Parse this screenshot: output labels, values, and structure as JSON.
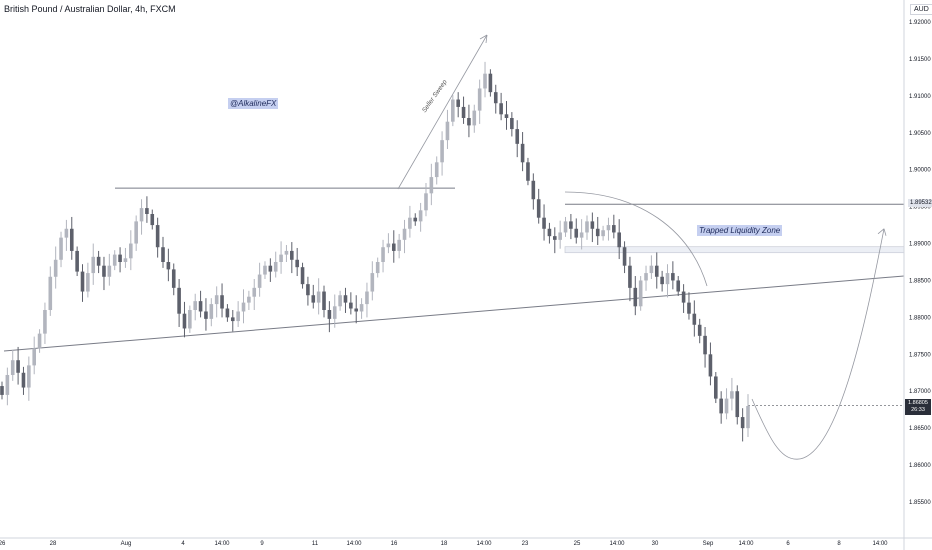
{
  "header": {
    "title": "British Pound / Australian Dollar, 4h, FXCM",
    "currency": "AUD"
  },
  "annotations": {
    "handle": "@AlkalineFX",
    "zone": "Trapped Liquidity Zone",
    "sweep": "Seller Sweep"
  },
  "price_labels": {
    "highlight": "1.89532",
    "last_price": "1.86805",
    "countdown": "26:33"
  },
  "chart_data": {
    "type": "candlestick",
    "instrument": "GBPAUD",
    "timeframe": "4h",
    "source": "FXCM",
    "ylim": [
      1.8525,
      1.921
    ],
    "y_ticks": [
      "1.92000",
      "1.91500",
      "1.91000",
      "1.90500",
      "1.90000",
      "1.89500",
      "1.89000",
      "1.88500",
      "1.88000",
      "1.87500",
      "1.87000",
      "1.86500",
      "1.86000",
      "1.85500"
    ],
    "x_ticks": [
      "26",
      "28",
      "Aug",
      "4",
      "14:00",
      "9",
      "11",
      "14:00",
      "16",
      "18",
      "14:00",
      "23",
      "25",
      "14:00",
      "30",
      "Sep",
      "14:00",
      "6",
      "8",
      "14:00"
    ],
    "closes": [
      1.8695,
      1.8722,
      1.8742,
      1.8725,
      1.8705,
      1.8735,
      1.8758,
      1.8778,
      1.881,
      1.8855,
      1.8878,
      1.8908,
      1.892,
      1.889,
      1.8862,
      1.8835,
      1.886,
      1.8882,
      1.887,
      1.8855,
      1.887,
      1.8885,
      1.8875,
      1.888,
      1.89,
      1.893,
      1.8948,
      1.894,
      1.8925,
      1.8895,
      1.8875,
      1.8865,
      1.884,
      1.8805,
      1.8785,
      1.881,
      1.8822,
      1.8808,
      1.8798,
      1.8818,
      1.883,
      1.8812,
      1.88,
      1.8795,
      1.8808,
      1.882,
      1.8828,
      1.884,
      1.8858,
      1.887,
      1.8862,
      1.8875,
      1.8885,
      1.889,
      1.8878,
      1.8868,
      1.8845,
      1.883,
      1.882,
      1.8835,
      1.881,
      1.8798,
      1.8815,
      1.883,
      1.882,
      1.8812,
      1.8808,
      1.8818,
      1.8835,
      1.886,
      1.8875,
      1.8895,
      1.89,
      1.889,
      1.8905,
      1.892,
      1.8935,
      1.893,
      1.8945,
      1.8968,
      1.899,
      1.901,
      1.904,
      1.9065,
      1.9095,
      1.9085,
      1.907,
      1.906,
      1.908,
      1.911,
      1.913,
      1.9105,
      1.909,
      1.9075,
      1.907,
      1.9055,
      1.9035,
      1.901,
      1.8985,
      1.896,
      1.8935,
      1.892,
      1.891,
      1.8905,
      1.8915,
      1.893,
      1.892,
      1.8908,
      1.8915,
      1.893,
      1.892,
      1.891,
      1.8918,
      1.8925,
      1.8915,
      1.8895,
      1.887,
      1.884,
      1.8815,
      1.885,
      1.886,
      1.887,
      1.8855,
      1.8845,
      1.886,
      1.885,
      1.8835,
      1.882,
      1.8805,
      1.879,
      1.8775,
      1.875,
      1.872,
      1.869,
      1.867,
      1.869,
      1.87,
      1.8665,
      1.865,
      1.868
    ],
    "levels": {
      "resistance_left": 1.8975,
      "highlight": 1.89532,
      "zone_top": 1.8893,
      "zone_bottom": 1.8885,
      "last": 1.86805
    },
    "projection": {
      "low": 1.8608,
      "target": 1.892
    }
  }
}
